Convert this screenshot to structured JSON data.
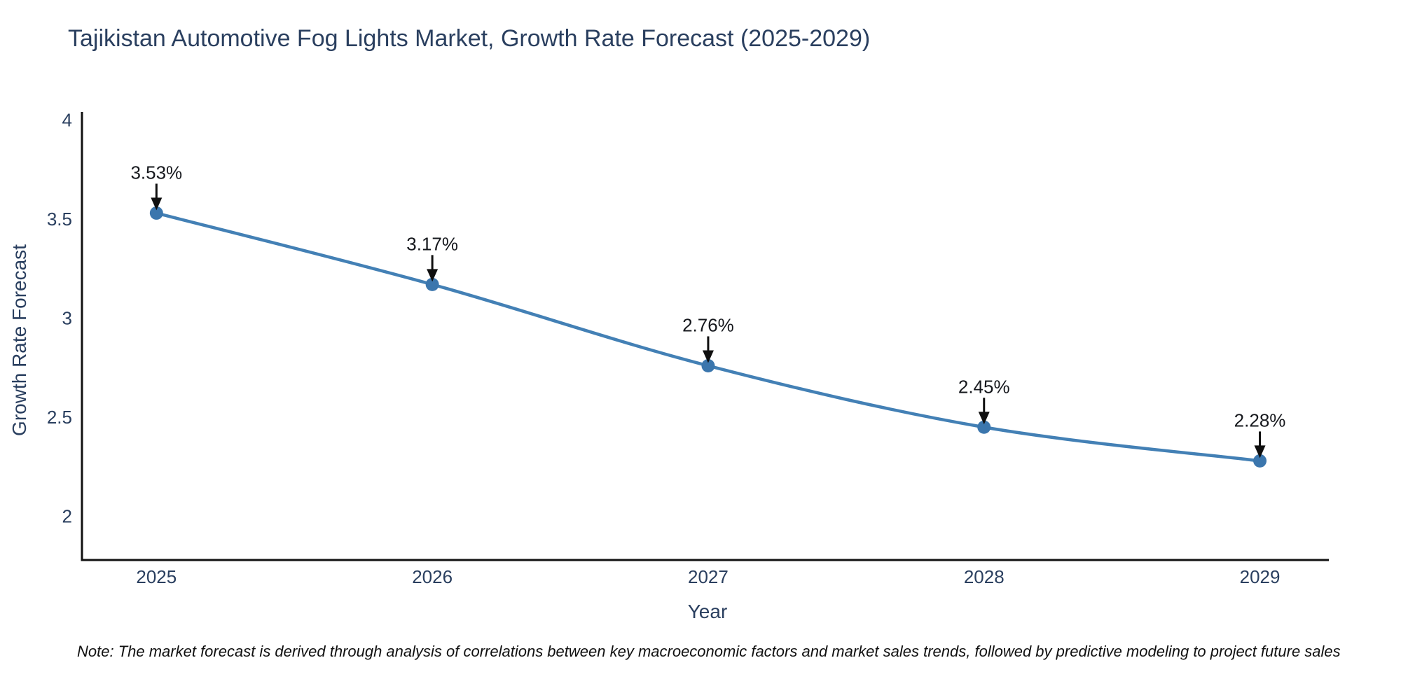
{
  "page": {
    "note": "Note: The market forecast is derived through analysis of correlations between key macroeconomic factors and market sales trends, followed by predictive modeling to project future sales"
  },
  "chart_data": {
    "type": "line",
    "title": "Tajikistan Automotive Fog Lights Market, Growth Rate Forecast (2025-2029)",
    "xlabel": "Year",
    "ylabel": "Growth Rate Forecast",
    "x": [
      2025,
      2026,
      2027,
      2028,
      2029
    ],
    "y": [
      3.53,
      3.17,
      2.76,
      2.45,
      2.28
    ],
    "point_labels": [
      "3.53%",
      "3.17%",
      "2.76%",
      "2.45%",
      "2.28%"
    ],
    "xticks": [
      "2025",
      "2026",
      "2027",
      "2028",
      "2029"
    ],
    "yticks": [
      "2",
      "2.5",
      "3",
      "3.5",
      "4"
    ],
    "ytick_values": [
      2,
      2.5,
      3,
      3.5,
      4
    ],
    "xtick_values": [
      2025,
      2026,
      2027,
      2028,
      2029
    ],
    "xlim": [
      2024.73,
      2029.25
    ],
    "ylim": [
      1.78,
      4.04
    ],
    "grid": false,
    "legend": false,
    "line_shape": "spline",
    "line_color": "#4380b5",
    "marker_color": "#3b76ad",
    "axis_color": "#111111",
    "annotation_color": "#16181d",
    "arrow_color": "#0f0f0f"
  }
}
